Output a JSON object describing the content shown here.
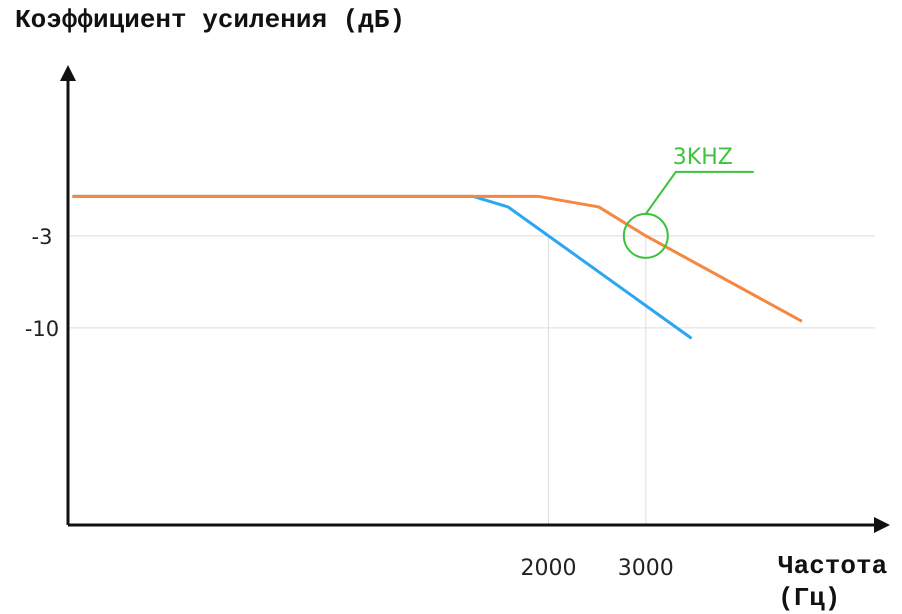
{
  "chart_data": {
    "type": "line",
    "y_label": "Коэффициент усиления (дБ)",
    "x_label": "Частота (Гц)",
    "xscale": "log",
    "xlim": [
      270,
      8300
    ],
    "ylim": [
      -25,
      10
    ],
    "xticks": [
      2000,
      3000
    ],
    "yticks": [
      -10,
      -3
    ],
    "grid": true,
    "series": [
      {
        "name": "Orange response",
        "color": "#f5873e",
        "x": [
          275,
          1920,
          2466,
          3000,
          5750
        ],
        "values": [
          0,
          0,
          -0.8,
          -3,
          -9.5
        ]
      },
      {
        "name": "Blue response",
        "color": "#2aa7f0",
        "x": [
          275,
          1462,
          1690,
          2000,
          3630
        ],
        "values": [
          0,
          0,
          -0.8,
          -3,
          -10.8
        ]
      }
    ],
    "annotation": {
      "text": "3KHZ",
      "x": 3000,
      "y": -3,
      "color": "#3cc43c"
    }
  }
}
